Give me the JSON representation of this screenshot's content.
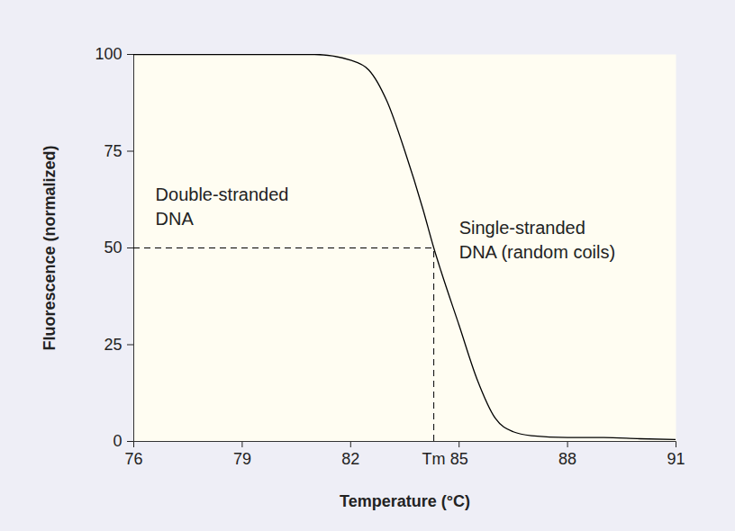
{
  "chart_data": {
    "type": "line",
    "x_label": "Temperature (°C)",
    "y_label": "Fluorescence (normalized)",
    "x": [
      76,
      79,
      81,
      82,
      82.5,
      83,
      83.5,
      84,
      84.3,
      84.5,
      85,
      85.5,
      86,
      86.5,
      87,
      88,
      89,
      90,
      91
    ],
    "values": [
      100,
      100,
      100,
      98.5,
      96,
      88,
      75,
      60,
      50,
      44,
      30,
      16,
      6,
      2.5,
      1.5,
      1,
      1,
      0.7,
      0.5
    ],
    "color": "#000000",
    "line_style": "solid",
    "xlim": [
      76,
      91
    ],
    "xticks": [
      76,
      79,
      82,
      85,
      88,
      91
    ],
    "ylim": [
      0,
      100
    ],
    "yticks": [
      0,
      25,
      50,
      75,
      100
    ],
    "grid": false,
    "tm": {
      "label": "Tm",
      "x": 84.3,
      "y": 50
    },
    "annotations": [
      {
        "text": "Double-stranded\nDNA",
        "x": 76.6,
        "y": 61
      },
      {
        "text": "Single-stranded\nDNA (random coils)",
        "x": 85,
        "y": 52.5
      }
    ]
  }
}
